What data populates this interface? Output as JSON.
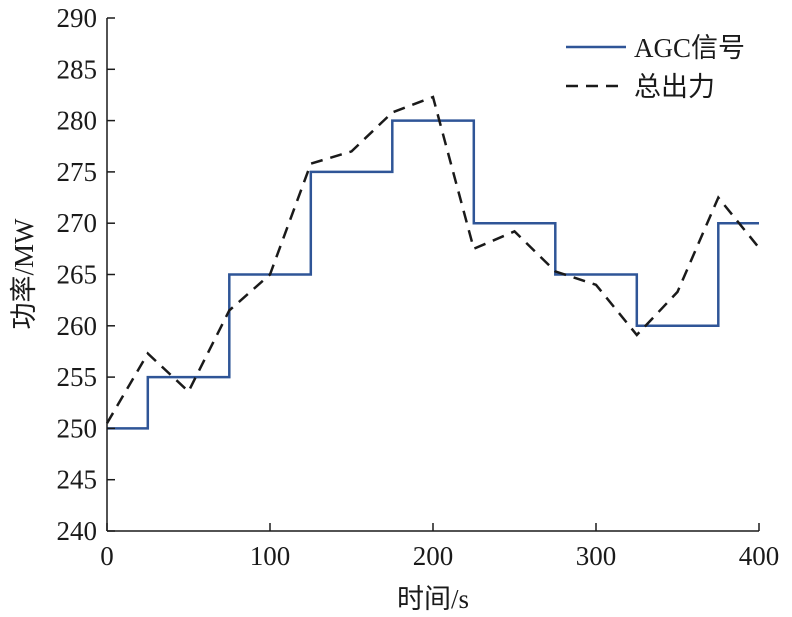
{
  "chart_data": {
    "type": "line",
    "xlabel": "时间/s",
    "ylabel": "功率/MW",
    "xlim": [
      0,
      400
    ],
    "ylim": [
      240,
      290
    ],
    "xticks": [
      0,
      100,
      200,
      300,
      400
    ],
    "yticks": [
      240,
      245,
      250,
      255,
      260,
      265,
      270,
      275,
      280,
      285,
      290
    ],
    "grid": false,
    "legend_position": "top-right",
    "series": [
      {
        "name": "AGC信号",
        "style": "solid",
        "color": "#2f5597",
        "x": [
          0,
          25,
          25,
          75,
          75,
          125,
          125,
          175,
          175,
          225,
          225,
          275,
          275,
          325,
          325,
          375,
          375,
          400
        ],
        "y": [
          250,
          250,
          255,
          255,
          265,
          265,
          275,
          275,
          280,
          280,
          270,
          270,
          265,
          265,
          260,
          260,
          270,
          270
        ]
      },
      {
        "name": "总出力",
        "style": "dashed",
        "color": "#1a1a1a",
        "x": [
          0,
          25,
          50,
          75,
          100,
          125,
          150,
          175,
          200,
          225,
          250,
          275,
          300,
          325,
          350,
          375,
          400
        ],
        "y": [
          250.5,
          257.3,
          253.6,
          261.5,
          265.0,
          275.8,
          277.0,
          280.8,
          282.3,
          267.5,
          269.2,
          265.3,
          264.0,
          259.1,
          263.3,
          272.5,
          267.6
        ]
      }
    ]
  }
}
